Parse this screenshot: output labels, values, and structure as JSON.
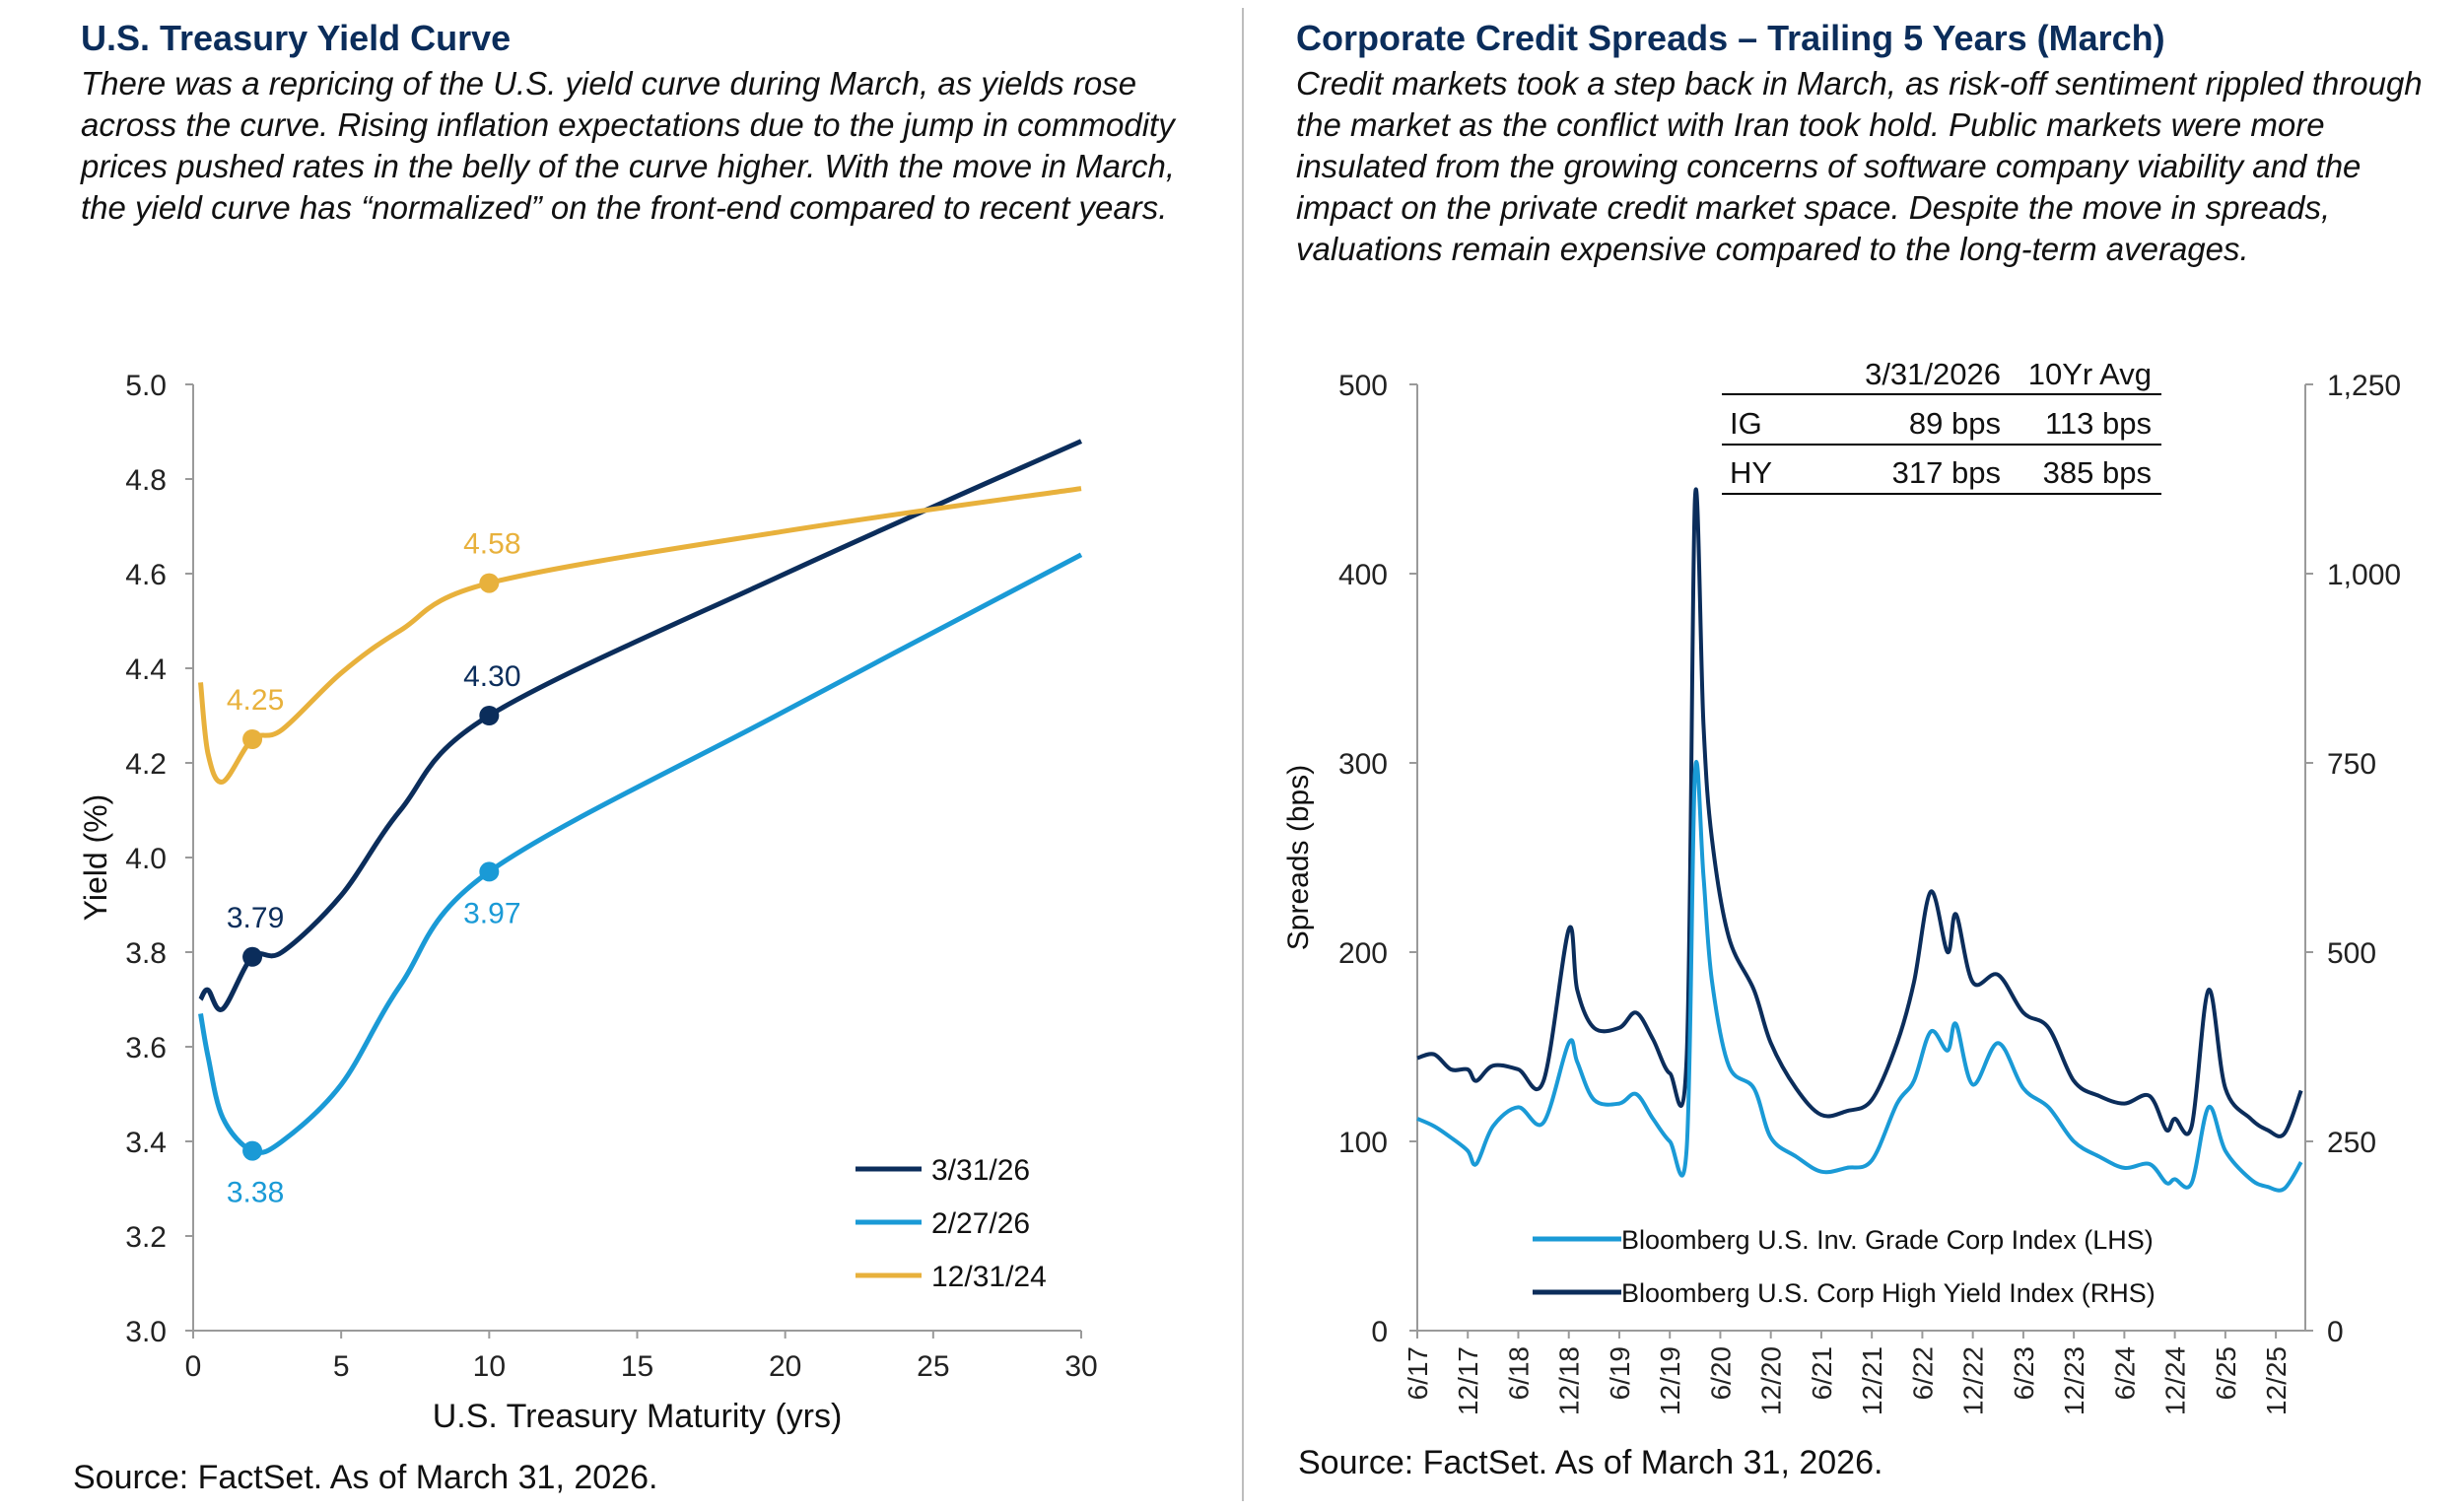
{
  "left": {
    "title": "U.S. Treasury Yield Curve",
    "body": "There was a repricing of the U.S. yield curve during March, as yields rose across the curve. Rising inflation expectations due to the jump in commodity prices pushed rates in the belly of the curve higher. With the move in March, the yield curve has “normalized” on the front-end compared to recent years.",
    "source": "Source: FactSet. As of March 31, 2026."
  },
  "right": {
    "title": "Corporate Credit Spreads – Trailing 5 Years (March)",
    "body": "Credit markets took a step back in March, as risk-off sentiment rippled through the market as the conflict with Iran took hold. Public markets were more insulated from the growing concerns of software company viability and the impact on the private credit market space. Despite the move in spreads, valuations remain expensive compared to the long-term averages.",
    "source": "Source: FactSet. As of March 31, 2026."
  },
  "chart_data": [
    {
      "type": "line",
      "xlabel": "U.S. Treasury  Maturity (yrs)",
      "ylabel": "Yield (%)",
      "xlim": [
        0,
        30
      ],
      "ylim": [
        3.0,
        5.0
      ],
      "x_ticks": [
        "0",
        "5",
        "10",
        "15",
        "20",
        "25",
        "30"
      ],
      "y_ticks": [
        "3.0",
        "3.2",
        "3.4",
        "3.6",
        "3.8",
        "4.0",
        "4.2",
        "4.4",
        "4.6",
        "4.8",
        "5.0"
      ],
      "legend_position": "bottom-right",
      "series": [
        {
          "name": "3/31/26",
          "color": "#0b2d5b",
          "points": [
            [
              0.25,
              3.7
            ],
            [
              0.5,
              3.72
            ],
            [
              1,
              3.68
            ],
            [
              2,
              3.79
            ],
            [
              3,
              3.8
            ],
            [
              5,
              3.92
            ],
            [
              7,
              4.1
            ],
            [
              10,
              4.3
            ],
            [
              20,
              4.6
            ],
            [
              30,
              4.88
            ]
          ],
          "markers": [
            {
              "x": 2,
              "y": 3.79,
              "label": "3.79",
              "pos": "above"
            },
            {
              "x": 10,
              "y": 4.3,
              "label": "4.30",
              "pos": "above"
            }
          ]
        },
        {
          "name": "2/27/26",
          "color": "#1a9ad6",
          "points": [
            [
              0.25,
              3.67
            ],
            [
              0.5,
              3.58
            ],
            [
              1,
              3.45
            ],
            [
              2,
              3.38
            ],
            [
              3,
              3.4
            ],
            [
              5,
              3.52
            ],
            [
              7,
              3.73
            ],
            [
              10,
              3.97
            ],
            [
              20,
              4.31
            ],
            [
              30,
              4.64
            ]
          ],
          "markers": [
            {
              "x": 2,
              "y": 3.38,
              "label": "3.38",
              "pos": "below"
            },
            {
              "x": 10,
              "y": 3.97,
              "label": "3.97",
              "pos": "below"
            }
          ]
        },
        {
          "name": "12/31/24",
          "color": "#e8b13c",
          "points": [
            [
              0.25,
              4.37
            ],
            [
              0.5,
              4.22
            ],
            [
              1,
              4.16
            ],
            [
              2,
              4.25
            ],
            [
              3,
              4.27
            ],
            [
              5,
              4.39
            ],
            [
              7,
              4.48
            ],
            [
              10,
              4.58
            ],
            [
              20,
              4.69
            ],
            [
              30,
              4.78
            ]
          ],
          "markers": [
            {
              "x": 2,
              "y": 4.25,
              "label": "4.25",
              "pos": "above"
            },
            {
              "x": 10,
              "y": 4.58,
              "label": "4.58",
              "pos": "above"
            }
          ]
        }
      ]
    },
    {
      "type": "line",
      "ylabel": "Spreads (bps)",
      "ylim_left": [
        0,
        500
      ],
      "ylim_right": [
        0,
        1250
      ],
      "y_ticks_left": [
        "0",
        "100",
        "200",
        "300",
        "400",
        "500"
      ],
      "y_ticks_right": [
        "0",
        "250",
        "500",
        "750",
        "1,000",
        "1,250"
      ],
      "x_ticks": [
        "6/17",
        "12/17",
        "6/18",
        "12/18",
        "6/19",
        "12/19",
        "6/20",
        "12/20",
        "6/21",
        "12/21",
        "6/22",
        "12/22",
        "6/23",
        "12/23",
        "6/24",
        "12/24",
        "6/25",
        "12/25"
      ],
      "x_start": "2017-06",
      "legend_position": "bottom",
      "table": {
        "headers": [
          "",
          "3/31/2026",
          "10Yr Avg"
        ],
        "rows": [
          [
            "IG",
            "89 bps",
            "113 bps"
          ],
          [
            "HY",
            "317 bps",
            "385 bps"
          ]
        ]
      },
      "series": [
        {
          "name": "Bloomberg U.S. Inv. Grade Corp Index (LHS)",
          "color": "#1a9ad6",
          "axis": "left",
          "points": [
            [
              "2017-06",
              112
            ],
            [
              "2017-08",
              108
            ],
            [
              "2017-10",
              102
            ],
            [
              "2017-12",
              95
            ],
            [
              "2018-01",
              88
            ],
            [
              "2018-03",
              108
            ],
            [
              "2018-06",
              118
            ],
            [
              "2018-09",
              110
            ],
            [
              "2018-12",
              152
            ],
            [
              "2019-01",
              142
            ],
            [
              "2019-03",
              122
            ],
            [
              "2019-06",
              120
            ],
            [
              "2019-08",
              125
            ],
            [
              "2019-10",
              112
            ],
            [
              "2019-12",
              100
            ],
            [
              "2020-02",
              96
            ],
            [
              "2020-03",
              295
            ],
            [
              "2020-04",
              240
            ],
            [
              "2020-05",
              185
            ],
            [
              "2020-07",
              140
            ],
            [
              "2020-10",
              128
            ],
            [
              "2020-12",
              102
            ],
            [
              "2021-03",
              92
            ],
            [
              "2021-06",
              84
            ],
            [
              "2021-09",
              86
            ],
            [
              "2021-12",
              90
            ],
            [
              "2022-03",
              120
            ],
            [
              "2022-05",
              132
            ],
            [
              "2022-07",
              158
            ],
            [
              "2022-09",
              148
            ],
            [
              "2022-10",
              162
            ],
            [
              "2022-12",
              130
            ],
            [
              "2023-03",
              152
            ],
            [
              "2023-06",
              128
            ],
            [
              "2023-09",
              118
            ],
            [
              "2023-12",
              100
            ],
            [
              "2024-03",
              92
            ],
            [
              "2024-06",
              86
            ],
            [
              "2024-09",
              88
            ],
            [
              "2024-11",
              78
            ],
            [
              "2024-12",
              80
            ],
            [
              "2025-02",
              78
            ],
            [
              "2025-04",
              118
            ],
            [
              "2025-06",
              95
            ],
            [
              "2025-09",
              80
            ],
            [
              "2025-11",
              76
            ],
            [
              "2026-01",
              75
            ],
            [
              "2026-03",
              89
            ]
          ]
        },
        {
          "name": "Bloomberg U.S. Corp High Yield Index (RHS)",
          "color": "#0b2d5b",
          "axis": "right",
          "points": [
            [
              "2017-06",
              360
            ],
            [
              "2017-08",
              365
            ],
            [
              "2017-10",
              345
            ],
            [
              "2017-12",
              345
            ],
            [
              "2018-01",
              330
            ],
            [
              "2018-03",
              350
            ],
            [
              "2018-06",
              345
            ],
            [
              "2018-09",
              330
            ],
            [
              "2018-12",
              530
            ],
            [
              "2019-01",
              450
            ],
            [
              "2019-03",
              400
            ],
            [
              "2019-06",
              400
            ],
            [
              "2019-08",
              420
            ],
            [
              "2019-10",
              385
            ],
            [
              "2019-12",
              340
            ],
            [
              "2020-02",
              360
            ],
            [
              "2020-03",
              1100
            ],
            [
              "2020-04",
              800
            ],
            [
              "2020-05",
              650
            ],
            [
              "2020-07",
              520
            ],
            [
              "2020-10",
              450
            ],
            [
              "2020-12",
              380
            ],
            [
              "2021-03",
              320
            ],
            [
              "2021-06",
              285
            ],
            [
              "2021-09",
              290
            ],
            [
              "2021-12",
              305
            ],
            [
              "2022-03",
              380
            ],
            [
              "2022-05",
              460
            ],
            [
              "2022-07",
              580
            ],
            [
              "2022-09",
              500
            ],
            [
              "2022-10",
              550
            ],
            [
              "2022-12",
              460
            ],
            [
              "2023-03",
              470
            ],
            [
              "2023-06",
              420
            ],
            [
              "2023-09",
              400
            ],
            [
              "2023-12",
              330
            ],
            [
              "2024-03",
              310
            ],
            [
              "2024-06",
              300
            ],
            [
              "2024-09",
              310
            ],
            [
              "2024-11",
              265
            ],
            [
              "2024-12",
              280
            ],
            [
              "2025-02",
              270
            ],
            [
              "2025-04",
              450
            ],
            [
              "2025-06",
              320
            ],
            [
              "2025-09",
              280
            ],
            [
              "2025-11",
              265
            ],
            [
              "2026-01",
              260
            ],
            [
              "2026-03",
              317
            ]
          ]
        }
      ]
    }
  ]
}
